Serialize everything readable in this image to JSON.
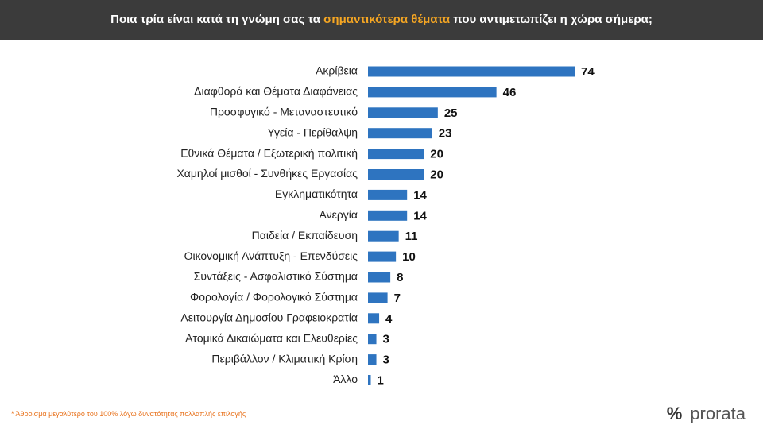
{
  "chart_data": {
    "type": "barh",
    "title": [
      "Ποια τρία είναι κατά τη γνώμη σας τα",
      "σημαντικότερα θέματα",
      "που αντιμετωπίζει η χώρα σήμερα;"
    ],
    "title_highlight_color": "#f5a623",
    "categories": [
      "Ακρίβεια",
      "Διαφθορά και Θέματα Διαφάνειας",
      "Προσφυγικό - Μεταναστευτικό",
      "Υγεία - Περίθαλψη",
      "Εθνικά Θέματα / Εξωτερική πολιτική",
      "Χαμηλοί μισθοί - Συνθήκες Εργασίας",
      "Εγκληματικότητα",
      "Ανεργία",
      "Παιδεία / Εκπαίδευση",
      "Οικονομική Ανάπτυξη - Επενδύσεις",
      "Συντάξεις - Ασφαλιστικό Σύστημα",
      "Φορολογία / Φορολογικό Σύστημα",
      "Λειτουργία Δημοσίου Γραφειοκρατία",
      "Ατομικά Δικαιώματα και Ελευθερίες",
      "Περιβάλλον / Κλιματική Κρίση",
      "Άλλο"
    ],
    "values": [
      74,
      46,
      25,
      23,
      20,
      20,
      14,
      14,
      11,
      10,
      8,
      7,
      4,
      3,
      3,
      1
    ],
    "color": "#2e74c0"
  },
  "footer": {
    "note": "* Άθροισμα μεγαλύτερο του 100% λόγω δυνατότητας πολλαπλής επιλογής",
    "logo_symbol": "%",
    "logo_name": "prorata"
  }
}
